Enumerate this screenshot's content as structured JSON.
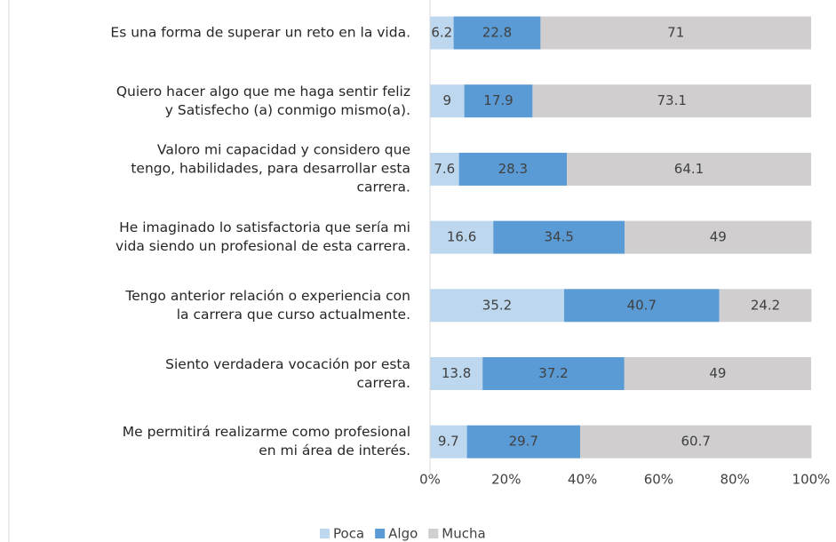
{
  "chart_data": {
    "type": "stacked-bar-horizontal",
    "categories": [
      "Es una forma de superar un reto en la vida.",
      "Quiero hacer algo que me haga sentir feliz\ny Satisfecho (a) conmigo mismo(a).",
      "Valoro mi capacidad y considero que\ntengo, habilidades, para desarrollar esta\ncarrera.",
      "He imaginado lo satisfactoria que sería mi\nvida siendo un profesional de esta carrera.",
      "Tengo anterior relación o experiencia con\nla carrera que curso actualmente.",
      "Siento verdadera vocación por esta\ncarrera.",
      "Me permitirá realizarme como profesional\nen mi área de interés."
    ],
    "series": [
      {
        "name": "Poca",
        "color": "#bdd7ee",
        "values": [
          6.2,
          9,
          7.6,
          16.6,
          35.2,
          13.8,
          9.7
        ]
      },
      {
        "name": "Algo",
        "color": "#5b9bd5",
        "values": [
          22.8,
          17.9,
          28.3,
          34.5,
          40.7,
          37.2,
          29.7
        ]
      },
      {
        "name": "Mucha",
        "color": "#d0cece",
        "values": [
          71,
          73.1,
          64.1,
          49,
          24.2,
          49,
          60.7
        ]
      }
    ],
    "xlim": [
      0,
      100
    ],
    "xticks": [
      {
        "value": 0,
        "label": "0%"
      },
      {
        "value": 20,
        "label": "20%"
      },
      {
        "value": 40,
        "label": "40%"
      },
      {
        "value": 60,
        "label": "60%"
      },
      {
        "value": 80,
        "label": "80%"
      },
      {
        "value": 100,
        "label": "100%"
      }
    ],
    "legend": "bottom"
  }
}
